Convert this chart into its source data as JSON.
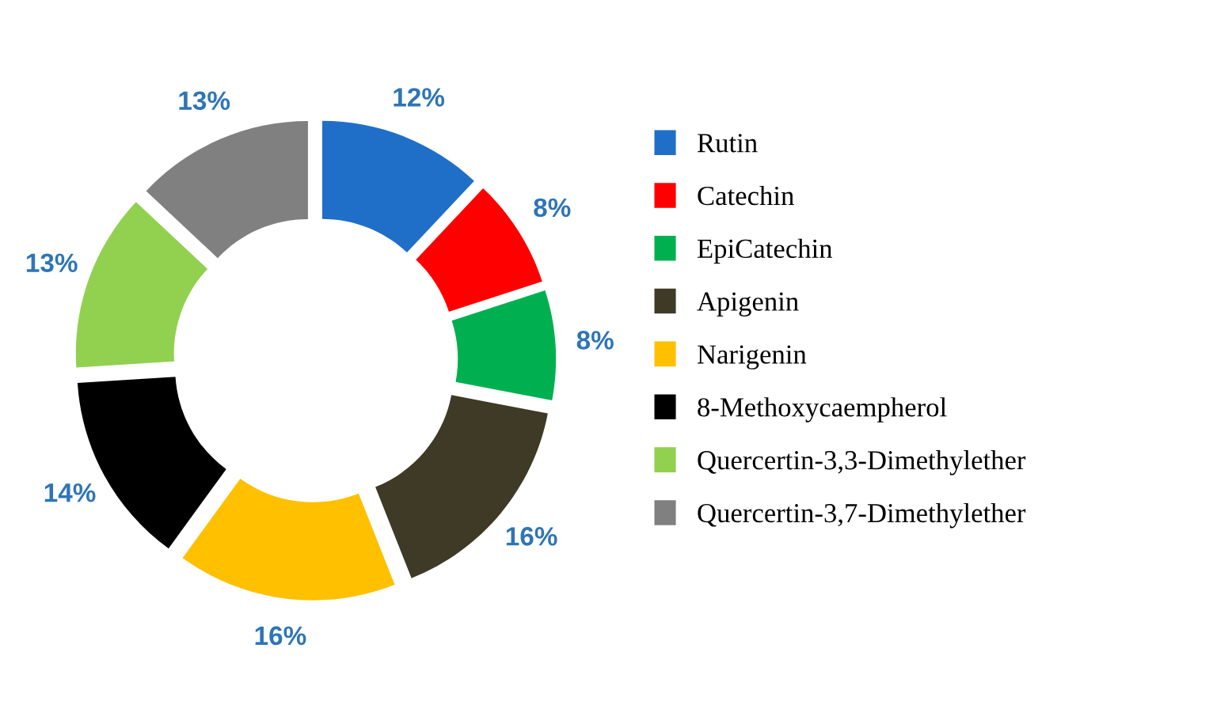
{
  "chart_data": {
    "type": "donut",
    "categories": [
      "Rutin",
      "Catechin",
      "EpiCatechin",
      "Apigenin",
      "Narigenin",
      "8-Methoxycaempherol",
      "Quercertin-3,3-Dimethylether",
      "Quercertin-3,7-Dimethylether"
    ],
    "values": [
      12,
      8,
      8,
      16,
      16,
      14,
      13,
      13
    ],
    "colors": [
      "#1f6fc8",
      "#ff0000",
      "#00b050",
      "#3f3a26",
      "#ffc000",
      "#000000",
      "#92d050",
      "#808080"
    ],
    "value_labels": [
      "12%",
      "8%",
      "8%",
      "16%",
      "16%",
      "14%",
      "13%",
      "13%"
    ],
    "legend": "right"
  }
}
